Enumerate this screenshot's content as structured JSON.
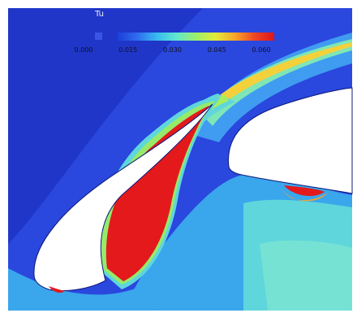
{
  "chart_data": {
    "type": "heatmap",
    "title": "",
    "legend": {
      "title": "Tu",
      "ticks": [
        "0.000",
        "0.015",
        "0.030",
        "0.045",
        "0.060"
      ],
      "placement": "top-left",
      "colormap": [
        "#1c3fd8",
        "#2f6cf0",
        "#38b9f0",
        "#5fe8cf",
        "#9cef6a",
        "#e2ea3a",
        "#f7a42a",
        "#ee4622",
        "#e0141c"
      ]
    },
    "colors": {
      "background": "#2a47de",
      "wake_light": "#48b4ee",
      "wake_mid": "#60d8e0",
      "hot": "#e3191c",
      "surface": "#ffffff"
    }
  }
}
